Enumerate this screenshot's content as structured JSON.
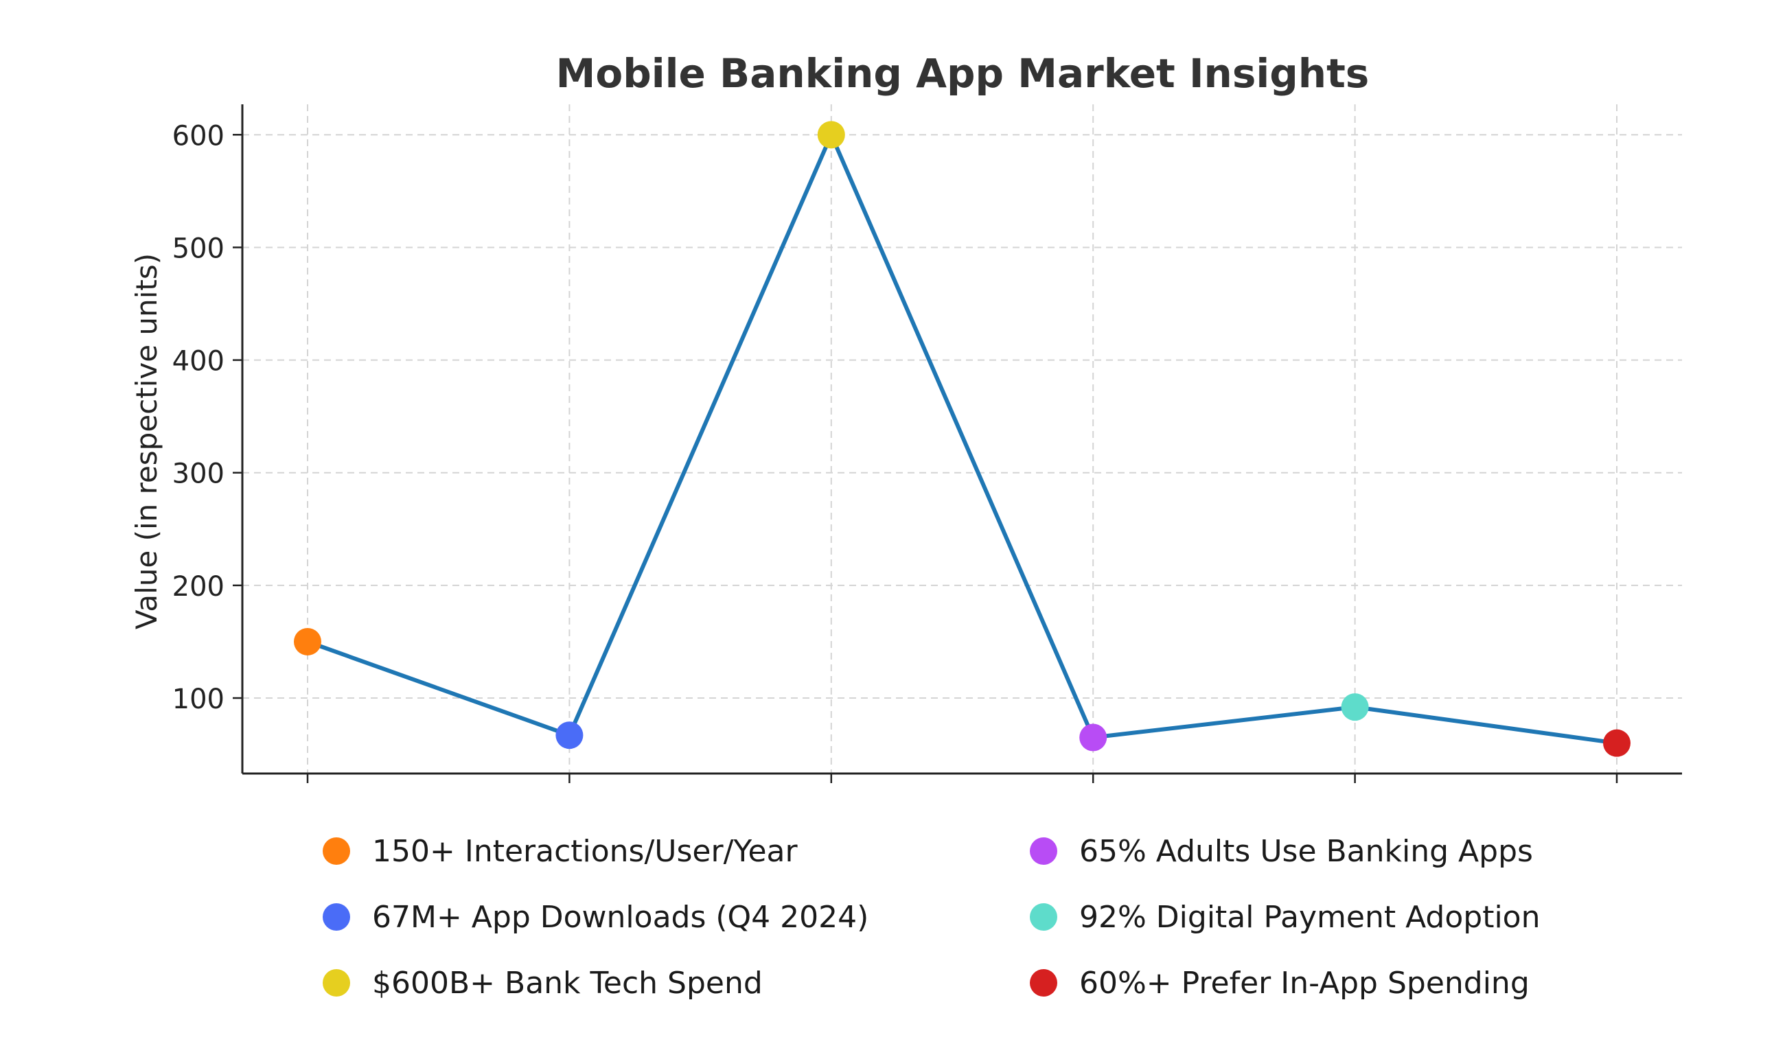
{
  "chart_data": {
    "type": "line",
    "title": "Mobile Banking App Market Insights",
    "ylabel": "Value (in respective units)",
    "xlabel": "",
    "ylim": [
      33,
      627
    ],
    "yticks": [
      100,
      200,
      300,
      400,
      500,
      600
    ],
    "grid": true,
    "legend_placement": "bottom",
    "line_color": "#1f77b4",
    "points": [
      {
        "label": "150+ Interactions/User/Year",
        "value": 150,
        "color": "#ff7f0e"
      },
      {
        "label": "67M+ App Downloads (Q4 2024)",
        "value": 67,
        "color": "#4a6cf7"
      },
      {
        "label": "$600B+ Bank Tech Spend",
        "value": 600,
        "color": "#e6cf1f"
      },
      {
        "label": "65% Adults Use Banking Apps",
        "value": 65,
        "color": "#b84cf5"
      },
      {
        "label": "92% Digital Payment Adoption",
        "value": 92,
        "color": "#5edccb"
      },
      {
        "label": "60%+ Prefer In-App Spending",
        "value": 60,
        "color": "#d62020"
      }
    ]
  }
}
